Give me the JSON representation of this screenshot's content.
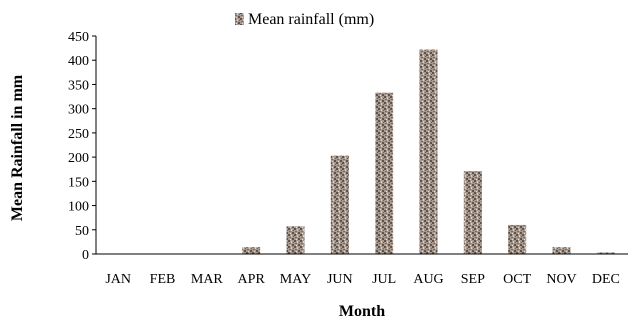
{
  "chart_data": {
    "type": "bar",
    "title": "",
    "xlabel": "Month",
    "ylabel": "Mean Rainfall in mm",
    "ylim": [
      0,
      450
    ],
    "yticks": [
      0,
      50,
      100,
      150,
      200,
      250,
      300,
      350,
      400,
      450
    ],
    "grid": false,
    "legend_position": "top-center",
    "categories": [
      "JAN",
      "FEB",
      "MAR",
      "APR",
      "MAY",
      "JUN",
      "JUL",
      "AUG",
      "SEP",
      "OCT",
      "NOV",
      "DEC"
    ],
    "series": [
      {
        "name": "Mean rainfall  (mm)",
        "values": [
          0,
          0,
          0,
          14,
          57,
          203,
          333,
          422,
          171,
          60,
          14,
          3
        ],
        "color": "#9a8c82"
      }
    ]
  }
}
